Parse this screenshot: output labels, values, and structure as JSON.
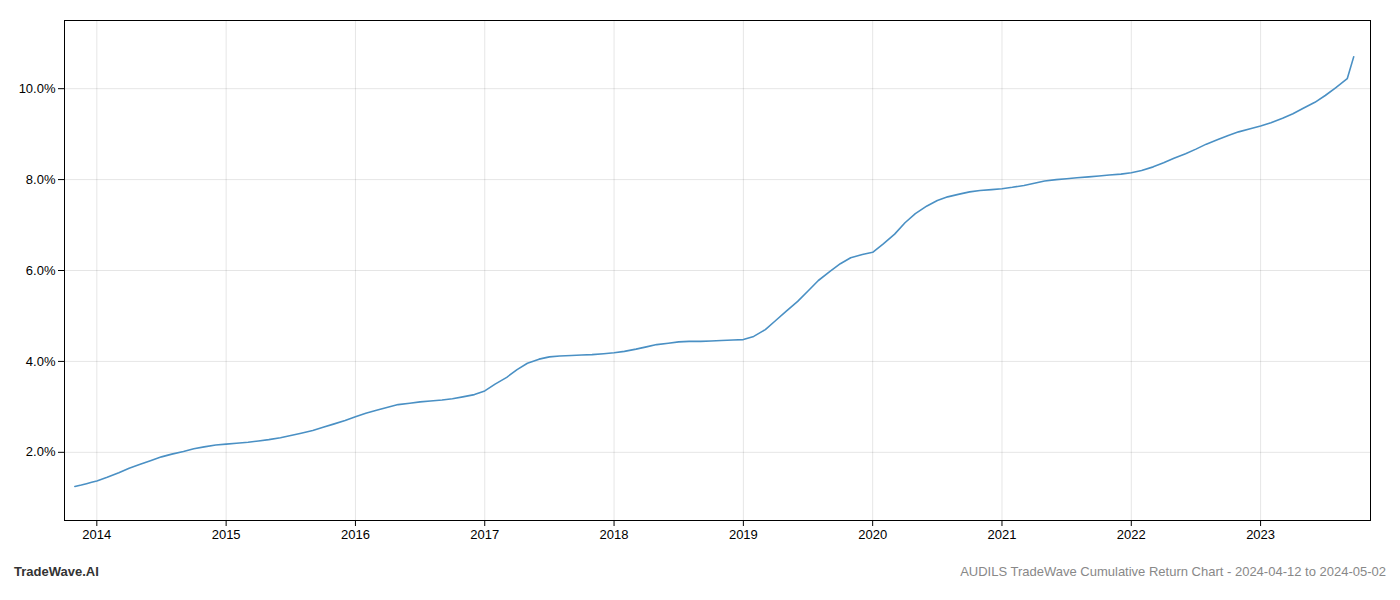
{
  "chart_data": {
    "type": "line",
    "title": "AUDILS TradeWave Cumulative Return Chart - 2024-04-12 to 2024-05-02",
    "annotations": [
      "TradeWave.AI"
    ],
    "x": [
      2013.83,
      2013.88,
      2013.92,
      2013.96,
      2014.0,
      2014.08,
      2014.17,
      2014.25,
      2014.33,
      2014.42,
      2014.5,
      2014.58,
      2014.67,
      2014.75,
      2014.83,
      2014.92,
      2015.0,
      2015.08,
      2015.17,
      2015.25,
      2015.33,
      2015.42,
      2015.5,
      2015.58,
      2015.67,
      2015.75,
      2015.83,
      2015.92,
      2016.0,
      2016.08,
      2016.17,
      2016.25,
      2016.33,
      2016.42,
      2016.5,
      2016.58,
      2016.67,
      2016.75,
      2016.83,
      2016.92,
      2017.0,
      2017.08,
      2017.17,
      2017.25,
      2017.33,
      2017.42,
      2017.5,
      2017.58,
      2017.67,
      2017.75,
      2017.83,
      2017.92,
      2018.0,
      2018.08,
      2018.17,
      2018.25,
      2018.33,
      2018.42,
      2018.5,
      2018.58,
      2018.67,
      2018.75,
      2018.83,
      2018.92,
      2019.0,
      2019.08,
      2019.17,
      2019.25,
      2019.33,
      2019.42,
      2019.5,
      2019.58,
      2019.67,
      2019.75,
      2019.83,
      2019.92,
      2020.0,
      2020.08,
      2020.17,
      2020.25,
      2020.33,
      2020.42,
      2020.5,
      2020.58,
      2020.67,
      2020.75,
      2020.83,
      2020.92,
      2021.0,
      2021.08,
      2021.17,
      2021.25,
      2021.33,
      2021.42,
      2021.5,
      2021.58,
      2021.67,
      2021.75,
      2021.83,
      2021.92,
      2022.0,
      2022.08,
      2022.17,
      2022.25,
      2022.33,
      2022.42,
      2022.5,
      2022.58,
      2022.67,
      2022.75,
      2022.83,
      2022.92,
      2023.0,
      2023.08,
      2023.17,
      2023.25,
      2023.33,
      2023.42,
      2023.5,
      2023.58,
      2023.67,
      2023.72
    ],
    "values": [
      1.25,
      1.28,
      1.31,
      1.34,
      1.37,
      1.45,
      1.55,
      1.65,
      1.73,
      1.82,
      1.9,
      1.96,
      2.02,
      2.08,
      2.12,
      2.16,
      2.18,
      2.2,
      2.22,
      2.25,
      2.28,
      2.32,
      2.37,
      2.42,
      2.48,
      2.55,
      2.62,
      2.7,
      2.78,
      2.86,
      2.93,
      2.99,
      3.05,
      3.08,
      3.11,
      3.13,
      3.15,
      3.18,
      3.22,
      3.27,
      3.35,
      3.5,
      3.65,
      3.82,
      3.96,
      4.05,
      4.1,
      4.12,
      4.13,
      4.14,
      4.15,
      4.17,
      4.19,
      4.22,
      4.27,
      4.32,
      4.37,
      4.4,
      4.43,
      4.44,
      4.44,
      4.45,
      4.46,
      4.47,
      4.48,
      4.55,
      4.7,
      4.9,
      5.1,
      5.32,
      5.55,
      5.78,
      5.98,
      6.15,
      6.28,
      6.35,
      6.4,
      6.58,
      6.8,
      7.05,
      7.25,
      7.42,
      7.54,
      7.62,
      7.68,
      7.73,
      7.76,
      7.78,
      7.8,
      7.83,
      7.87,
      7.92,
      7.97,
      8.0,
      8.02,
      8.04,
      8.06,
      8.08,
      8.1,
      8.12,
      8.15,
      8.2,
      8.28,
      8.37,
      8.47,
      8.57,
      8.67,
      8.78,
      8.88,
      8.97,
      9.05,
      9.12,
      9.18,
      9.25,
      9.35,
      9.45,
      9.57,
      9.7,
      9.85,
      10.02,
      10.22,
      10.7
    ],
    "color": "#4a90c4",
    "xlim": [
      2013.75,
      2023.85
    ],
    "xticks": [
      2014,
      2015,
      2016,
      2017,
      2018,
      2019,
      2020,
      2021,
      2022,
      2023
    ],
    "ylim": [
      0.5,
      11.5
    ],
    "yticks": [
      {
        "value": 2.0,
        "label": "2.0%"
      },
      {
        "value": 4.0,
        "label": "4.0%"
      },
      {
        "value": 6.0,
        "label": "6.0%"
      },
      {
        "value": 8.0,
        "label": "8.0%"
      },
      {
        "value": 10.0,
        "label": "10.0%"
      }
    ],
    "grid": true
  }
}
